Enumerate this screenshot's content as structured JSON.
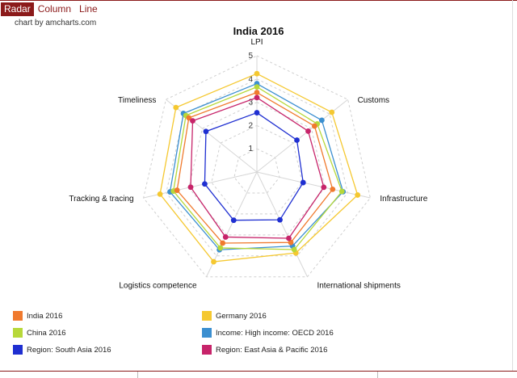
{
  "tabs": [
    {
      "label": "Radar",
      "active": true
    },
    {
      "label": "Column",
      "active": false
    },
    {
      "label": "Line",
      "active": false
    }
  ],
  "credit": "chart by amcharts.com",
  "chart_data": {
    "type": "radar",
    "title": "India 2016",
    "axes": [
      "LPI",
      "Customs",
      "Infrastructure",
      "International shipments",
      "Logistics competence",
      "Tracking & tracing",
      "Timeliness"
    ],
    "radial_ticks": [
      "1",
      "2",
      "3",
      "4",
      "5"
    ],
    "range": [
      0,
      5
    ],
    "series": [
      {
        "name": "Germany 2016",
        "color": "#f5c830",
        "values": [
          4.23,
          4.12,
          4.44,
          3.86,
          4.28,
          4.27,
          4.45
        ]
      },
      {
        "name": "Income: High income: OECD 2016",
        "color": "#3b8fd0",
        "values": [
          3.8,
          3.57,
          3.8,
          3.53,
          3.71,
          3.83,
          4.04
        ]
      },
      {
        "name": "China 2016",
        "color": "#b7d83a",
        "values": [
          3.66,
          3.32,
          3.75,
          3.7,
          3.62,
          3.68,
          3.9
        ]
      },
      {
        "name": "India 2016",
        "color": "#f07a2e",
        "values": [
          3.42,
          3.17,
          3.34,
          3.36,
          3.39,
          3.52,
          3.74
        ]
      },
      {
        "name": "Region: East Asia & Pacific 2016",
        "color": "#c7246a",
        "values": [
          3.2,
          2.82,
          2.95,
          3.16,
          3.1,
          2.92,
          3.53
        ]
      },
      {
        "name": "Region: South Asia 2016",
        "color": "#1f2fd1",
        "values": [
          2.55,
          2.2,
          2.04,
          2.28,
          2.3,
          2.3,
          2.8
        ]
      }
    ]
  },
  "legend": [
    {
      "label": "India 2016",
      "color": "#f07a2e"
    },
    {
      "label": "Germany 2016",
      "color": "#f5c830"
    },
    {
      "label": "China 2016",
      "color": "#b7d83a"
    },
    {
      "label": "Income: High income: OECD 2016",
      "color": "#3b8fd0"
    },
    {
      "label": "Region: South Asia 2016",
      "color": "#1f2fd1"
    },
    {
      "label": "Region: East Asia & Pacific 2016",
      "color": "#c7246a"
    }
  ]
}
